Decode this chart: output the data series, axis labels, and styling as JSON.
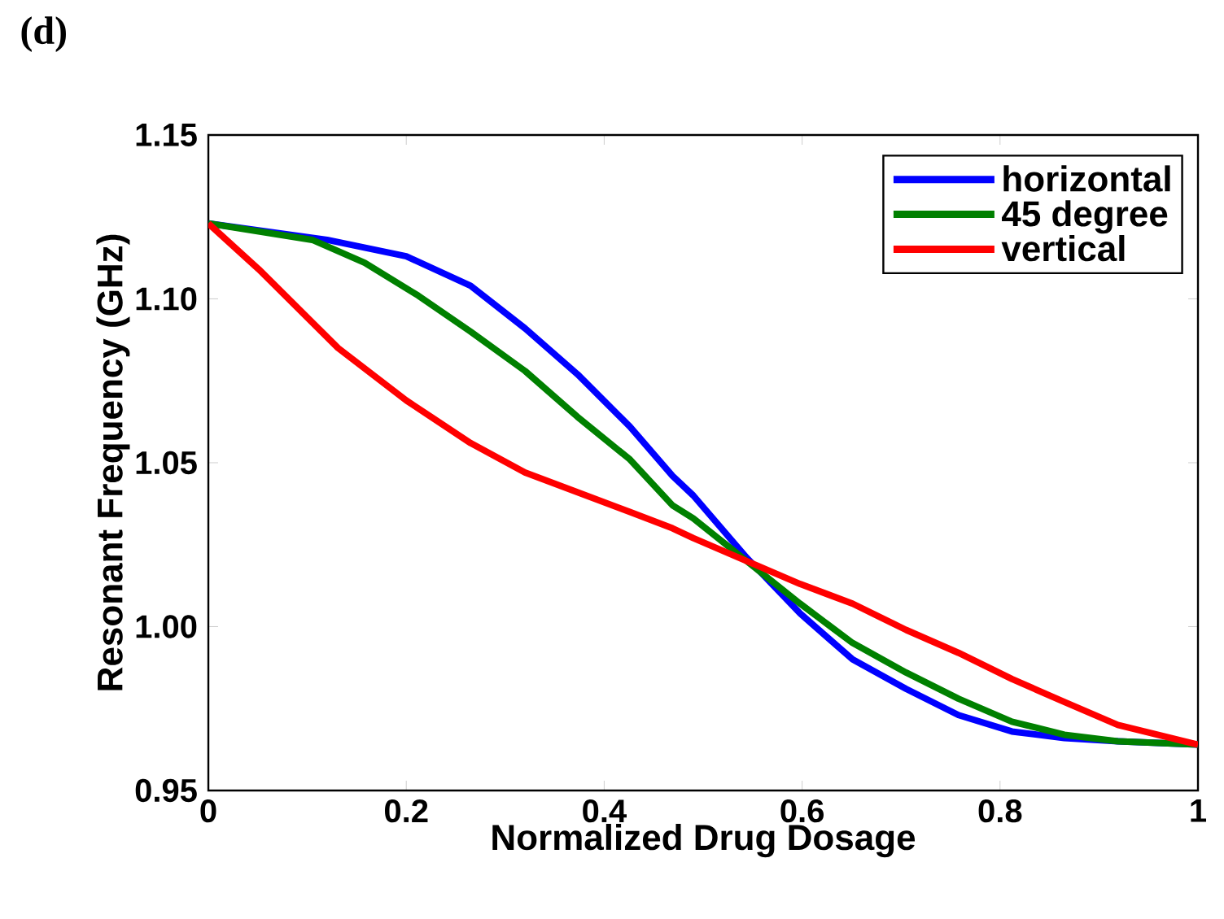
{
  "chart_data": {
    "type": "line",
    "title": "(d)",
    "xlabel": "Normalized Drug Dosage",
    "ylabel": "Resonant Frequency (GHz)",
    "xlim": [
      0,
      1
    ],
    "ylim": [
      0.95,
      1.15
    ],
    "xticks": [
      0,
      0.2,
      0.4,
      0.6,
      0.8,
      1
    ],
    "yticks": [
      {
        "value": 0.95,
        "label": "0.95"
      },
      {
        "value": 1.0,
        "label": "1.00"
      },
      {
        "value": 1.05,
        "label": "1.05"
      },
      {
        "value": 1.1,
        "label": "1.10"
      },
      {
        "value": 1.15,
        "label": "1.15"
      }
    ],
    "grid": false,
    "legend": "top right",
    "marker": "none",
    "line_style": "solid",
    "series": [
      {
        "name": "horizontal",
        "color": "#0000ff",
        "x": [
          0,
          0.12,
          0.2,
          0.265,
          0.32,
          0.373,
          0.426,
          0.469,
          0.49,
          0.544,
          0.598,
          0.651,
          0.705,
          0.758,
          0.812,
          0.865,
          0.919,
          1.0
        ],
        "values": [
          1.123,
          1.118,
          1.113,
          1.104,
          1.091,
          1.077,
          1.061,
          1.046,
          1.04,
          1.021,
          1.004,
          0.99,
          0.981,
          0.973,
          0.968,
          0.966,
          0.965,
          0.964
        ]
      },
      {
        "name": "45 degree",
        "color": "#008000",
        "x": [
          0,
          0.105,
          0.158,
          0.212,
          0.265,
          0.32,
          0.373,
          0.426,
          0.469,
          0.49,
          0.544,
          0.598,
          0.651,
          0.705,
          0.758,
          0.812,
          0.865,
          0.919,
          1.0
        ],
        "values": [
          1.123,
          1.118,
          1.111,
          1.101,
          1.09,
          1.078,
          1.064,
          1.051,
          1.037,
          1.033,
          1.02,
          1.007,
          0.995,
          0.986,
          0.978,
          0.971,
          0.967,
          0.965,
          0.964
        ]
      },
      {
        "name": "vertical",
        "color": "#ff0000",
        "x": [
          0,
          0.051,
          0.131,
          0.2,
          0.265,
          0.32,
          0.373,
          0.426,
          0.469,
          0.49,
          0.544,
          0.598,
          0.651,
          0.705,
          0.758,
          0.812,
          0.865,
          0.919,
          1.0
        ],
        "values": [
          1.123,
          1.109,
          1.085,
          1.069,
          1.056,
          1.047,
          1.041,
          1.035,
          1.03,
          1.027,
          1.02,
          1.013,
          1.007,
          0.999,
          0.992,
          0.984,
          0.977,
          0.97,
          0.964
        ]
      }
    ]
  }
}
